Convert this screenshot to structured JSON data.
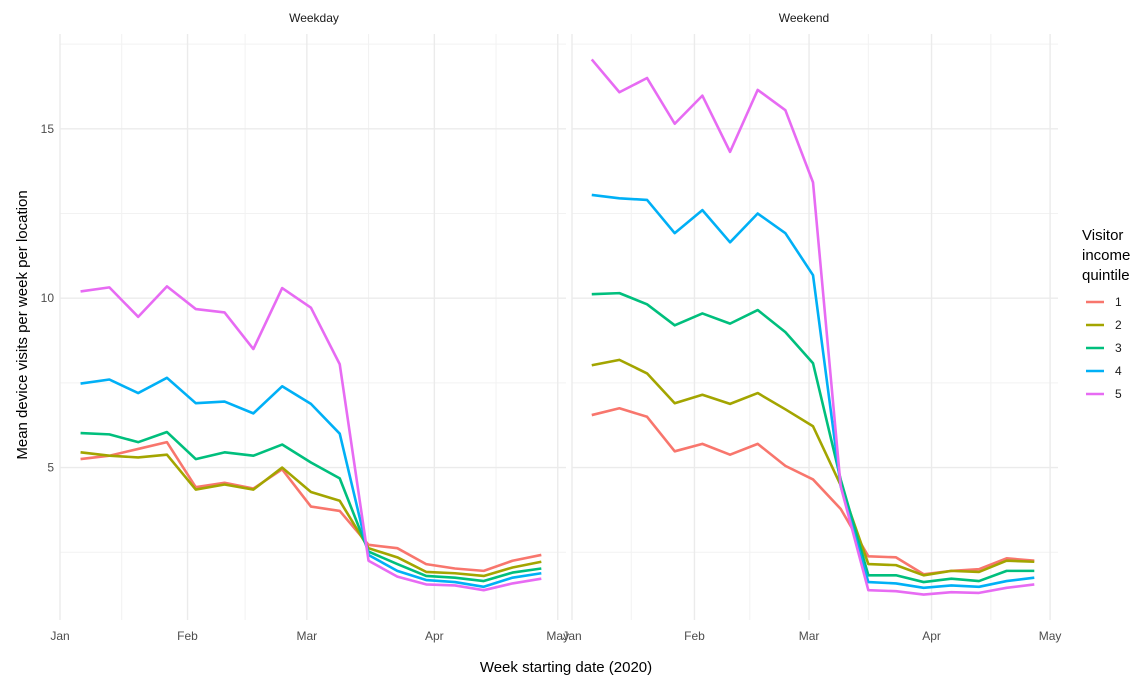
{
  "chart_data": {
    "type": "line",
    "xlabel": "Week starting date (2020)",
    "ylabel": "Mean device visits per week per location",
    "ylim": [
      0.5,
      17.8
    ],
    "xlim": [
      "2020-01-01",
      "2020-05-03"
    ],
    "grid": true,
    "x_ticks": [
      "Jan",
      "Feb",
      "Mar",
      "Apr",
      "May"
    ],
    "y_ticks": [
      5,
      10,
      15
    ],
    "legend_title": "Visitor income quintile",
    "legend_position": "right",
    "weeks": [
      "2020-01-06",
      "2020-01-13",
      "2020-01-20",
      "2020-01-27",
      "2020-02-03",
      "2020-02-10",
      "2020-02-17",
      "2020-02-24",
      "2020-03-02",
      "2020-03-09",
      "2020-03-16",
      "2020-03-23",
      "2020-03-30",
      "2020-04-06",
      "2020-04-13",
      "2020-04-20",
      "2020-04-27"
    ],
    "panels": [
      {
        "strip": "Weekday",
        "series": [
          {
            "name": "1",
            "color": "#F8766D",
            "values": [
              5.25,
              5.35,
              5.55,
              5.75,
              4.42,
              4.55,
              4.38,
              4.95,
              3.85,
              3.72,
              2.72,
              2.62,
              2.15,
              2.02,
              1.95,
              2.25,
              2.42
            ]
          },
          {
            "name": "2",
            "color": "#A3A500",
            "values": [
              5.45,
              5.35,
              5.3,
              5.38,
              4.35,
              4.5,
              4.35,
              5.0,
              4.28,
              4.02,
              2.62,
              2.35,
              1.92,
              1.88,
              1.8,
              2.05,
              2.22
            ]
          },
          {
            "name": "3",
            "color": "#00BF7D",
            "values": [
              6.02,
              5.98,
              5.75,
              6.05,
              5.25,
              5.45,
              5.35,
              5.68,
              5.15,
              4.68,
              2.52,
              2.15,
              1.8,
              1.75,
              1.65,
              1.9,
              2.02
            ]
          },
          {
            "name": "4",
            "color": "#00B0F6",
            "values": [
              7.48,
              7.6,
              7.2,
              7.65,
              6.9,
              6.95,
              6.6,
              7.4,
              6.88,
              6.0,
              2.42,
              1.95,
              1.68,
              1.62,
              1.48,
              1.75,
              1.88
            ]
          },
          {
            "name": "5",
            "color": "#E76BF3",
            "values": [
              10.2,
              10.32,
              9.45,
              10.35,
              9.68,
              9.58,
              8.5,
              10.3,
              9.72,
              8.05,
              2.25,
              1.78,
              1.55,
              1.52,
              1.38,
              1.58,
              1.72
            ]
          }
        ]
      },
      {
        "strip": "Weekend",
        "series": [
          {
            "name": "1",
            "color": "#F8766D",
            "values": [
              6.55,
              6.75,
              6.5,
              5.48,
              5.7,
              5.38,
              5.7,
              5.05,
              4.65,
              3.78,
              2.38,
              2.35,
              1.85,
              1.95,
              2.0,
              2.32,
              2.25
            ]
          },
          {
            "name": "2",
            "color": "#A3A500",
            "values": [
              8.02,
              8.18,
              7.78,
              6.9,
              7.15,
              6.88,
              7.2,
              6.72,
              6.22,
              4.48,
              2.15,
              2.12,
              1.82,
              1.95,
              1.92,
              2.25,
              2.22
            ]
          },
          {
            "name": "3",
            "color": "#00BF7D",
            "values": [
              10.12,
              10.15,
              9.82,
              9.2,
              9.55,
              9.25,
              9.65,
              9.0,
              8.08,
              4.65,
              1.82,
              1.82,
              1.62,
              1.72,
              1.65,
              1.95,
              1.95
            ]
          },
          {
            "name": "4",
            "color": "#00B0F6",
            "values": [
              13.05,
              12.95,
              12.9,
              11.92,
              12.6,
              11.65,
              12.5,
              11.92,
              10.68,
              4.45,
              1.62,
              1.58,
              1.45,
              1.52,
              1.48,
              1.65,
              1.75
            ]
          },
          {
            "name": "5",
            "color": "#E76BF3",
            "values": [
              17.05,
              16.08,
              16.5,
              15.15,
              15.98,
              14.32,
              16.15,
              15.55,
              13.42,
              4.45,
              1.38,
              1.35,
              1.25,
              1.32,
              1.3,
              1.45,
              1.55
            ]
          }
        ]
      }
    ]
  }
}
